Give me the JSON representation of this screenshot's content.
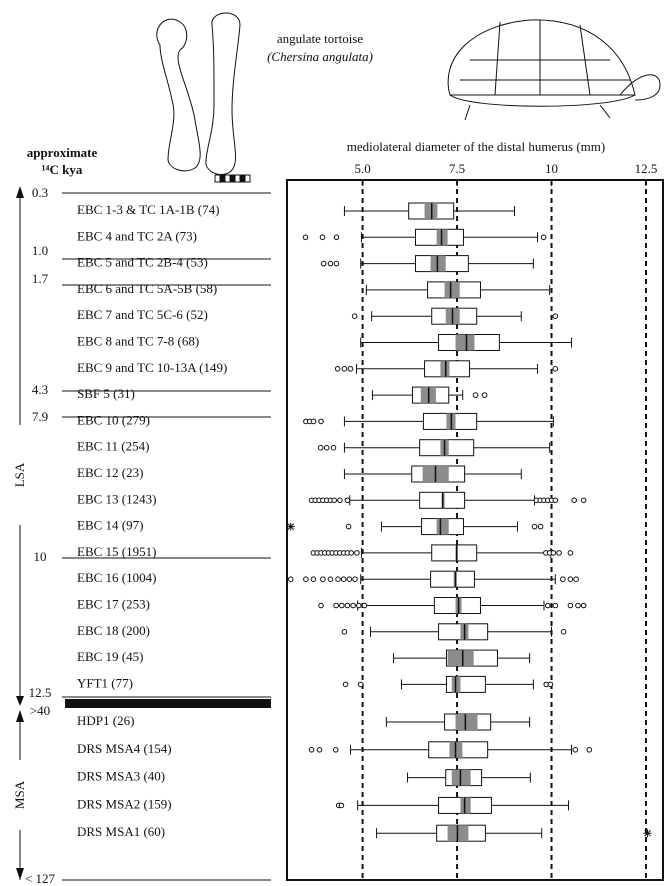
{
  "chart_data": {
    "type": "boxplot",
    "title": "mediolateral diameter of the distal humerus (mm)",
    "species": "angulate tortoise",
    "species_latin": "(Chersina angulata)",
    "y_label": [
      "approximate",
      "¹⁴C kya"
    ],
    "periods": [
      "LSA",
      "MSA"
    ],
    "age_marks": [
      "0.3",
      "1.0",
      "1.7",
      "4.3",
      "7.9",
      "10",
      "12.5",
      ">40",
      "< 127"
    ],
    "xlim": [
      3,
      12.95
    ],
    "xticks": [
      {
        "value": 5,
        "label": "5.0"
      },
      7.5,
      10,
      12.5
    ],
    "grid": true,
    "box_color": "#ffffff",
    "ci_color": "#8c8c8c",
    "groups": [
      {
        "name": "EBC 1-3 & TC 1A-1B (74)",
        "whisker_low": 4.52,
        "q1": 6.22,
        "median": 6.83,
        "q3": 7.41,
        "whisker_high": 9.02,
        "median_ci": [
          6.64,
          6.98
        ],
        "outliers": []
      },
      {
        "name": "EBC 4 and TC 2A  (73)",
        "whisker_low": 4.97,
        "q1": 6.4,
        "median": 7.09,
        "q3": 7.67,
        "whisker_high": 9.63,
        "median_ci": [
          6.96,
          7.25
        ],
        "outliers": [
          3.49,
          3.94,
          4.31,
          9.79
        ]
      },
      {
        "name": "EBC 5 and TC 2B-4 (53)",
        "whisker_low": 4.95,
        "q1": 6.4,
        "median": 6.98,
        "q3": 7.8,
        "whisker_high": 9.52,
        "median_ci": [
          6.8,
          7.2
        ],
        "outliers": [
          3.97,
          4.15,
          4.31
        ]
      },
      {
        "name": "EBC 6 and TC 5A-5B (58)",
        "whisker_low": 5.1,
        "q1": 6.72,
        "median": 7.33,
        "q3": 8.12,
        "whisker_high": 9.95,
        "median_ci": [
          7.17,
          7.57
        ],
        "outliers": []
      },
      {
        "name": "EBC 7 and TC 5C-6 (52)",
        "whisker_low": 5.24,
        "q1": 6.83,
        "median": 7.38,
        "q3": 8.02,
        "whisker_high": 9.2,
        "median_ci": [
          7.2,
          7.57
        ],
        "outliers": [
          4.79,
          10.1
        ]
      },
      {
        "name": "EBC 8 and TC 7-8 (68)",
        "whisker_low": 4.95,
        "q1": 7.01,
        "median": 7.75,
        "q3": 8.62,
        "whisker_high": 10.53,
        "median_ci": [
          7.46,
          7.96
        ],
        "outliers": []
      },
      {
        "name": "EBC 9 and TC 10-13A (149)",
        "whisker_low": 4.84,
        "q1": 6.64,
        "median": 7.2,
        "q3": 7.83,
        "whisker_high": 9.63,
        "median_ci": [
          7.06,
          7.3
        ],
        "outliers": [
          4.34,
          4.52,
          4.68,
          10.1
        ]
      },
      {
        "name": "SBF 5 (31)",
        "whisker_low": 5.26,
        "q1": 6.32,
        "median": 6.75,
        "q3": 7.28,
        "whisker_high": 7.65,
        "median_ci": [
          6.54,
          6.94
        ],
        "outliers": [
          7.99,
          8.23
        ]
      },
      {
        "name": "EBC 10 (279)",
        "whisker_low": 4.52,
        "q1": 6.61,
        "median": 7.35,
        "q3": 8.02,
        "whisker_high": 10.05,
        "median_ci": [
          7.22,
          7.46
        ],
        "outliers": [
          3.5,
          3.6,
          3.7,
          3.9
        ]
      },
      {
        "name": "EBC 11 (254)",
        "whisker_low": 4.52,
        "q1": 6.51,
        "median": 7.17,
        "q3": 7.94,
        "whisker_high": 9.95,
        "median_ci": [
          7.06,
          7.28
        ],
        "outliers": [
          3.89,
          4.05,
          4.23
        ]
      },
      {
        "name": "EBC 12 (23)",
        "whisker_low": 4.52,
        "q1": 6.3,
        "median": 6.93,
        "q3": 7.7,
        "whisker_high": 9.2,
        "median_ci": [
          6.59,
          7.28
        ],
        "outliers": []
      },
      {
        "name": "EBC 13 (1243)",
        "whisker_low": 4.66,
        "q1": 6.51,
        "median": 7.12,
        "q3": 7.7,
        "whisker_high": 9.55,
        "median_ci": [
          7.09,
          7.17
        ],
        "outliers": [
          3.65,
          3.75,
          3.85,
          3.95,
          4.05,
          4.15,
          4.25,
          4.4,
          4.6,
          9.6,
          9.7,
          9.8,
          9.9,
          10.0,
          10.1,
          10.6,
          10.85
        ]
      },
      {
        "name": "EBC 14 (97)",
        "whisker_low": 5.5,
        "q1": 6.56,
        "median": 7.06,
        "q3": 7.67,
        "whisker_high": 9.1,
        "median_ci": [
          6.96,
          7.28
        ],
        "outliers": [
          4.63,
          9.55,
          9.71
        ],
        "extremes": [
          3.1
        ]
      },
      {
        "name": "EBC 15 (1951)",
        "whisker_low": 4.97,
        "q1": 6.83,
        "median": 7.49,
        "q3": 8.02,
        "whisker_high": 9.98,
        "median_ci": [
          7.46,
          7.52
        ],
        "outliers": [
          3.7,
          3.8,
          3.9,
          4.0,
          4.1,
          4.2,
          4.3,
          4.4,
          4.5,
          4.6,
          4.7,
          4.85,
          9.85,
          9.95,
          10.05,
          10.2,
          10.5
        ]
      },
      {
        "name": "EBC 16 (1004)",
        "whisker_low": 4.95,
        "q1": 6.8,
        "median": 7.46,
        "q3": 7.96,
        "whisker_high": 10.1,
        "median_ci": [
          7.41,
          7.49
        ],
        "outliers": [
          3.1,
          3.5,
          3.7,
          3.95,
          4.15,
          4.35,
          4.5,
          4.65,
          4.8,
          10.3,
          10.5,
          10.65
        ]
      },
      {
        "name": "EBC 17 (253)",
        "whisker_low": 4.87,
        "q1": 6.9,
        "median": 7.54,
        "q3": 8.12,
        "whisker_high": 9.8,
        "median_ci": [
          7.46,
          7.62
        ],
        "outliers": [
          3.9,
          4.3,
          4.45,
          4.6,
          4.75,
          4.9,
          5.05,
          9.9,
          10.1,
          10.5,
          10.7,
          10.85
        ]
      },
      {
        "name": "EBC 18 (200)",
        "whisker_low": 5.21,
        "q1": 7.01,
        "median": 7.7,
        "q3": 8.31,
        "whisker_high": 10.0,
        "median_ci": [
          7.59,
          7.8
        ],
        "outliers": [
          4.52,
          10.32
        ]
      },
      {
        "name": "EBC 19 (45)",
        "whisker_low": 5.82,
        "q1": 7.22,
        "median": 7.65,
        "q3": 8.57,
        "whisker_high": 9.42,
        "median_ci": [
          7.25,
          7.94
        ],
        "outliers": []
      },
      {
        "name": "YFT1 (77)",
        "whisker_low": 6.03,
        "q1": 7.22,
        "median": 7.46,
        "q3": 8.25,
        "whisker_high": 9.52,
        "median_ci": [
          7.36,
          7.59
        ],
        "outliers": [
          4.55,
          4.95,
          9.86,
          9.97
        ]
      },
      {
        "name": "HDP1 (26)",
        "whisker_low": 5.63,
        "q1": 7.17,
        "median": 7.72,
        "q3": 8.39,
        "whisker_high": 9.42,
        "median_ci": [
          7.46,
          8.04
        ],
        "outliers": []
      },
      {
        "name": "DRS MSA4 (154)",
        "whisker_low": 4.68,
        "q1": 6.75,
        "median": 7.46,
        "q3": 8.31,
        "whisker_high": 10.53,
        "median_ci": [
          7.3,
          7.64
        ],
        "outliers": [
          3.65,
          3.86,
          4.29,
          10.63,
          11.0
        ]
      },
      {
        "name": "DRS MSA3 (40)",
        "whisker_low": 6.19,
        "q1": 7.2,
        "median": 7.59,
        "q3": 8.15,
        "whisker_high": 9.44,
        "median_ci": [
          7.36,
          7.86
        ],
        "outliers": []
      },
      {
        "name": "DRS MSA2 (159)",
        "whisker_low": 4.87,
        "q1": 7.01,
        "median": 7.7,
        "q3": 8.41,
        "whisker_high": 10.45,
        "median_ci": [
          7.59,
          7.86
        ],
        "outliers": [
          4.37,
          4.44
        ]
      },
      {
        "name": "DRS MSA1 (60)",
        "whisker_low": 5.37,
        "q1": 6.96,
        "median": 7.51,
        "q3": 8.25,
        "whisker_high": 9.74,
        "median_ci": [
          7.25,
          7.8
        ],
        "outliers": [],
        "extremes": [
          12.54
        ]
      }
    ]
  }
}
